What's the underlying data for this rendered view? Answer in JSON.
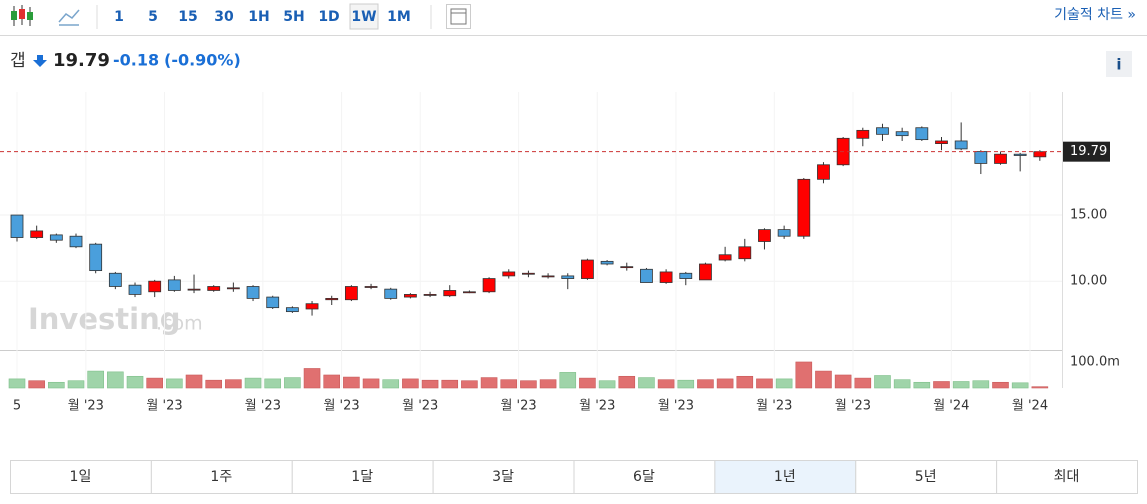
{
  "toolbar": {
    "intervals": [
      "1",
      "5",
      "15",
      "30",
      "1H",
      "5H",
      "1D",
      "1W",
      "1M"
    ],
    "active_interval": 7,
    "technical_link": "기술적 차트 »"
  },
  "quote": {
    "name": "갭",
    "price": 19.79,
    "change": -0.18,
    "change_pct": "(-0.90%)",
    "info": "i"
  },
  "watermark": {
    "brand": "Investing",
    "suffix": ".com"
  },
  "chart_data": {
    "type": "candlestick",
    "categories": [
      "5",
      null,
      null,
      null,
      "월 '23",
      null,
      null,
      null,
      "월 '23",
      null,
      null,
      null,
      null,
      "월 '23",
      null,
      null,
      null,
      "월 '23",
      null,
      null,
      null,
      "월 '23",
      null,
      null,
      null,
      null,
      "월 '23",
      null,
      null,
      null,
      "월 '23",
      null,
      null,
      null,
      "월 '23",
      null,
      null,
      null,
      null,
      "월 '23",
      null,
      null,
      null,
      "월 '23",
      null,
      null,
      null,
      null,
      "월 '24",
      null,
      null,
      null,
      "월 '24"
    ],
    "open": [
      15.0,
      13.3,
      13.5,
      13.4,
      12.8,
      10.6,
      9.7,
      9.2,
      10.1,
      9.4,
      9.3,
      9.5,
      9.6,
      8.8,
      8.0,
      7.9,
      8.6,
      8.6,
      9.6,
      9.4,
      8.8,
      9.0,
      8.9,
      9.2,
      9.2,
      10.4,
      10.6,
      10.4,
      10.4,
      10.2,
      11.5,
      11.1,
      10.9,
      9.9,
      10.6,
      10.1,
      11.6,
      11.7,
      13.0,
      13.9,
      13.4,
      17.7,
      18.8,
      20.8,
      21.6,
      21.3,
      21.6,
      20.4,
      20.6,
      19.8,
      18.9,
      19.6,
      19.4
    ],
    "high": [
      15.0,
      14.2,
      13.6,
      13.6,
      12.9,
      10.7,
      9.9,
      10.1,
      10.4,
      10.5,
      9.7,
      9.9,
      9.7,
      8.9,
      8.1,
      8.5,
      8.9,
      9.7,
      9.8,
      9.5,
      9.1,
      9.2,
      9.7,
      9.3,
      10.3,
      10.9,
      10.8,
      10.6,
      10.6,
      11.7,
      11.6,
      11.4,
      11.0,
      10.9,
      10.7,
      11.4,
      12.6,
      13.2,
      14.0,
      14.2,
      17.8,
      19.0,
      20.9,
      21.6,
      21.9,
      21.6,
      21.7,
      20.9,
      22.0,
      19.9,
      19.8,
      19.7,
      19.9
    ],
    "low": [
      13.0,
      13.2,
      12.9,
      12.5,
      10.6,
      9.4,
      8.8,
      8.8,
      9.2,
      9.1,
      9.2,
      9.2,
      8.5,
      7.9,
      7.6,
      7.4,
      8.2,
      8.5,
      9.4,
      8.6,
      8.7,
      8.8,
      8.8,
      9.1,
      9.1,
      10.2,
      10.3,
      10.2,
      9.4,
      10.1,
      11.2,
      10.8,
      9.9,
      9.8,
      9.7,
      10.1,
      11.5,
      11.5,
      12.4,
      13.2,
      13.2,
      17.4,
      18.7,
      20.2,
      20.6,
      20.6,
      20.6,
      19.9,
      19.9,
      18.1,
      18.8,
      18.3,
      19.1
    ],
    "close": [
      13.3,
      13.8,
      13.1,
      12.6,
      10.8,
      9.6,
      9.0,
      10.0,
      9.3,
      9.4,
      9.6,
      9.5,
      8.7,
      8.0,
      7.7,
      8.3,
      8.7,
      9.6,
      9.6,
      8.7,
      9.0,
      9.0,
      9.3,
      9.2,
      10.2,
      10.7,
      10.6,
      10.4,
      10.2,
      11.6,
      11.3,
      11.1,
      9.9,
      10.7,
      10.2,
      11.3,
      12.0,
      12.6,
      13.9,
      13.4,
      17.7,
      18.8,
      20.8,
      21.4,
      21.1,
      21.0,
      20.7,
      20.6,
      20.0,
      18.9,
      19.6,
      19.5,
      19.79
    ],
    "up_color": "#ff0000",
    "down_color": "#4a9fdc",
    "ylim": [
      4.8,
      24.3
    ],
    "yticks": [
      {
        "value": 15,
        "label": "15.00"
      },
      {
        "value": 10,
        "label": "10.00"
      }
    ],
    "volume": [
      35,
      28,
      22,
      28,
      65,
      62,
      45,
      38,
      35,
      50,
      30,
      32,
      38,
      35,
      40,
      75,
      50,
      42,
      35,
      32,
      35,
      30,
      30,
      28,
      40,
      32,
      28,
      32,
      60,
      38,
      28,
      45,
      40,
      32,
      30,
      32,
      35,
      45,
      35,
      35,
      100,
      65,
      50,
      38,
      48,
      32,
      22,
      25,
      25,
      28,
      22,
      20,
      5
    ],
    "volume_up_color": "#e07070",
    "volume_down_color": "#9fd4a9",
    "volume_ylim": [
      0,
      146
    ],
    "volume_ticks": [
      {
        "value": 100,
        "label": "100.0m"
      }
    ]
  },
  "ranges": {
    "items": [
      "1일",
      "1주",
      "1달",
      "3달",
      "6달",
      "1년",
      "5년",
      "최대"
    ],
    "active": 5
  }
}
